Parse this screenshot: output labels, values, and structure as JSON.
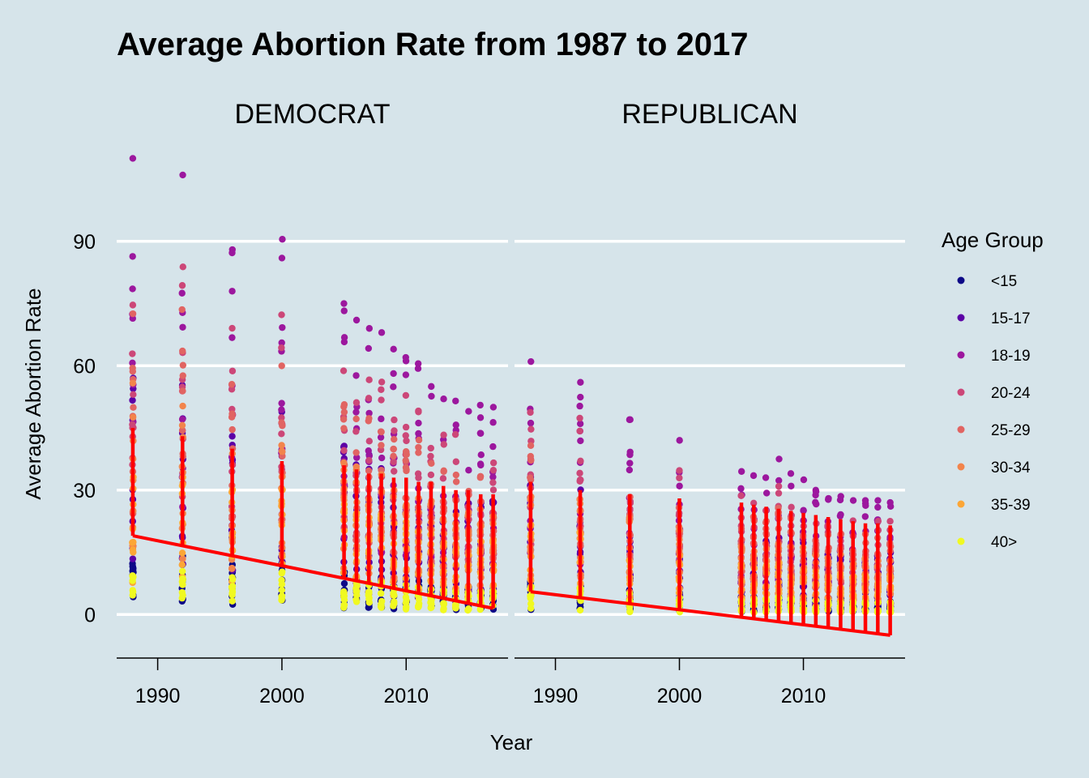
{
  "chart_data": {
    "type": "scatter",
    "title": "Average Abortion Rate from 1987 to 2017",
    "xlabel": "Year",
    "ylabel": "Average Abortion Rate",
    "xlim": [
      1986.7,
      2018.2
    ],
    "ylim": [
      -10.5,
      114
    ],
    "x_ticks": [
      1990,
      2000,
      2010
    ],
    "y_ticks": [
      0,
      30,
      60,
      90
    ],
    "grid": "horizontal major lines only",
    "legend_position": "right",
    "legend_title": "Age Group",
    "years": [
      1988,
      1992,
      1996,
      2000,
      2005,
      2006,
      2007,
      2008,
      2009,
      2010,
      2011,
      2012,
      2013,
      2014,
      2015,
      2016,
      2017
    ],
    "age_groups": [
      {
        "name": "<15",
        "color": "#0d0887"
      },
      {
        "name": "15-17",
        "color": "#5c01a6"
      },
      {
        "name": "18-19",
        "color": "#9c179e"
      },
      {
        "name": "20-24",
        "color": "#cc4778"
      },
      {
        "name": "25-29",
        "color": "#e16462"
      },
      {
        "name": "30-34",
        "color": "#f2844b"
      },
      {
        "name": "35-39",
        "color": "#fca636"
      },
      {
        "name": "40>",
        "color": "#f0f921"
      }
    ],
    "trend_color": "#ff0000",
    "panels": [
      {
        "name": "DEMOCRAT",
        "trend": [
          [
            1988,
            19.0
          ],
          [
            2017,
            1.5
          ]
        ],
        "per_year_range": [
          [
            1988,
            2.0,
            110.0
          ],
          [
            1992,
            2.0,
            106.0
          ],
          [
            1996,
            2.0,
            88.0
          ],
          [
            2000,
            2.0,
            90.5
          ],
          [
            2005,
            1.5,
            75.0
          ],
          [
            2006,
            1.5,
            71.0
          ],
          [
            2007,
            1.5,
            69.0
          ],
          [
            2008,
            1.5,
            68.0
          ],
          [
            2009,
            1.2,
            64.0
          ],
          [
            2010,
            1.2,
            62.0
          ],
          [
            2011,
            1.0,
            60.5
          ],
          [
            2012,
            1.0,
            55.0
          ],
          [
            2013,
            1.0,
            52.0
          ],
          [
            2014,
            1.0,
            51.5
          ],
          [
            2015,
            1.0,
            49.0
          ],
          [
            2016,
            0.8,
            50.5
          ],
          [
            2017,
            0.8,
            50.0
          ]
        ],
        "red_band_max": [
          [
            1988,
            45
          ],
          [
            1992,
            43
          ],
          [
            1996,
            40
          ],
          [
            2000,
            37
          ],
          [
            2005,
            36
          ],
          [
            2006,
            35
          ],
          [
            2007,
            34
          ],
          [
            2008,
            34
          ],
          [
            2009,
            33
          ],
          [
            2010,
            33
          ],
          [
            2011,
            32
          ],
          [
            2012,
            32
          ],
          [
            2013,
            31
          ],
          [
            2014,
            30
          ],
          [
            2015,
            30
          ],
          [
            2016,
            29
          ],
          [
            2017,
            29
          ]
        ]
      },
      {
        "name": "REPUBLICAN",
        "trend": [
          [
            1988,
            5.5
          ],
          [
            2017,
            -5.0
          ]
        ],
        "per_year_range": [
          [
            1988,
            1.0,
            61.0
          ],
          [
            1992,
            1.0,
            56.0
          ],
          [
            1996,
            0.5,
            47.0
          ],
          [
            2000,
            0.5,
            42.0
          ],
          [
            2005,
            0.5,
            34.5
          ],
          [
            2006,
            0.5,
            33.5
          ],
          [
            2007,
            0.5,
            33.0
          ],
          [
            2008,
            0.5,
            37.5
          ],
          [
            2009,
            0.5,
            34.0
          ],
          [
            2010,
            0.5,
            32.5
          ],
          [
            2011,
            0.5,
            30.0
          ],
          [
            2012,
            0.5,
            28.0
          ],
          [
            2013,
            0.5,
            28.5
          ],
          [
            2014,
            0.5,
            27.5
          ],
          [
            2015,
            0.5,
            27.5
          ],
          [
            2016,
            0.5,
            27.5
          ],
          [
            2017,
            0.5,
            27.0
          ]
        ],
        "red_band_max": [
          [
            1988,
            32
          ],
          [
            1992,
            30
          ],
          [
            1996,
            29
          ],
          [
            2000,
            28
          ],
          [
            2005,
            27
          ],
          [
            2006,
            26.5
          ],
          [
            2007,
            26
          ],
          [
            2008,
            25.5
          ],
          [
            2009,
            25
          ],
          [
            2010,
            24.5
          ],
          [
            2011,
            24
          ],
          [
            2012,
            23.5
          ],
          [
            2013,
            23
          ],
          [
            2014,
            22.5
          ],
          [
            2015,
            22
          ],
          [
            2016,
            22
          ],
          [
            2017,
            21.5
          ]
        ]
      }
    ]
  }
}
